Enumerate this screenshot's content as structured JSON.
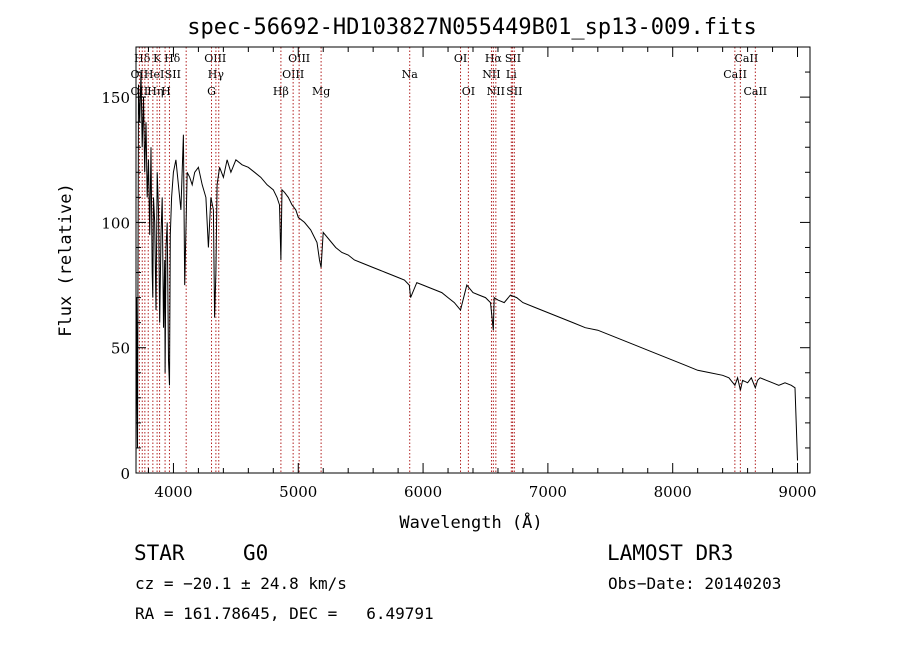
{
  "chart_data": {
    "type": "line",
    "title": "spec-56692-HD103827N055449B01_sp13-009.fits",
    "xlabel": "Wavelength (Å)",
    "ylabel": "Flux (relative)",
    "xlim": [
      3700,
      9100
    ],
    "ylim": [
      0,
      170
    ],
    "x_ticks": [
      4000,
      5000,
      6000,
      7000,
      8000,
      9000
    ],
    "y_ticks": [
      0,
      50,
      100,
      150
    ],
    "grid": false,
    "series": [
      {
        "name": "flux",
        "x": [
          3700,
          3705,
          3712,
          3720,
          3730,
          3740,
          3750,
          3760,
          3770,
          3780,
          3790,
          3800,
          3810,
          3820,
          3830,
          3835,
          3840,
          3850,
          3860,
          3870,
          3880,
          3890,
          3900,
          3910,
          3920,
          3930,
          3933,
          3940,
          3950,
          3960,
          3968,
          3975,
          3985,
          4000,
          4020,
          4040,
          4060,
          4080,
          4090,
          4101,
          4110,
          4130,
          4150,
          4170,
          4200,
          4230,
          4260,
          4280,
          4300,
          4320,
          4330,
          4340,
          4350,
          4370,
          4400,
          4430,
          4460,
          4500,
          4550,
          4600,
          4650,
          4700,
          4750,
          4800,
          4830,
          4850,
          4861,
          4870,
          4890,
          4920,
          4950,
          4980,
          5000,
          5050,
          5100,
          5150,
          5170,
          5183,
          5200,
          5250,
          5300,
          5350,
          5400,
          5450,
          5500,
          5550,
          5600,
          5650,
          5700,
          5750,
          5800,
          5850,
          5890,
          5900,
          5950,
          6000,
          6050,
          6100,
          6150,
          6200,
          6250,
          6300,
          6350,
          6400,
          6450,
          6500,
          6540,
          6563,
          6570,
          6600,
          6650,
          6700,
          6750,
          6800,
          6900,
          7000,
          7100,
          7200,
          7300,
          7400,
          7500,
          7600,
          7700,
          7800,
          7900,
          8000,
          8100,
          8200,
          8300,
          8400,
          8450,
          8498,
          8520,
          8542,
          8560,
          8600,
          8630,
          8662,
          8680,
          8700,
          8750,
          8800,
          8850,
          8900,
          8950,
          8980,
          9000
        ],
        "values": [
          2,
          70,
          10,
          155,
          140,
          160,
          130,
          150,
          120,
          140,
          110,
          125,
          95,
          130,
          80,
          70,
          110,
          100,
          65,
          120,
          105,
          60,
          95,
          110,
          58,
          85,
          40,
          90,
          100,
          45,
          35,
          95,
          110,
          120,
          125,
          115,
          105,
          135,
          75,
          100,
          120,
          118,
          115,
          120,
          122,
          115,
          110,
          90,
          110,
          105,
          62,
          80,
          115,
          122,
          118,
          125,
          120,
          125,
          123,
          122,
          120,
          118,
          115,
          113,
          110,
          107,
          85,
          113,
          112,
          110,
          107,
          105,
          102,
          100,
          97,
          92,
          85,
          82,
          96,
          93,
          90,
          88,
          87,
          85,
          84,
          83,
          82,
          81,
          80,
          79,
          78,
          77,
          75,
          70,
          76,
          75,
          74,
          73,
          72,
          70,
          68,
          65,
          75,
          72,
          71,
          70,
          68,
          57,
          70,
          69,
          68,
          71,
          70,
          68,
          66,
          64,
          62,
          60,
          58,
          57,
          55,
          53,
          51,
          49,
          47,
          45,
          43,
          41,
          40,
          39,
          38,
          35,
          38,
          33,
          37,
          36,
          38,
          34,
          37,
          38,
          37,
          36,
          35,
          36,
          35,
          34,
          5
        ]
      }
    ],
    "lines_top": [
      {
        "label": "Hδ",
        "x": 3750,
        "row": 1
      },
      {
        "label": "K",
        "x": 3870,
        "row": 1
      },
      {
        "label": "Hδ",
        "x": 3990,
        "row": 1
      },
      {
        "label": "OIII",
        "x": 4335,
        "row": 1
      },
      {
        "label": "OIII",
        "x": 5007,
        "row": 1
      },
      {
        "label": "OI",
        "x": 6300,
        "row": 1
      },
      {
        "label": "Hα",
        "x": 6563,
        "row": 1
      },
      {
        "label": "SII",
        "x": 6720,
        "row": 1
      },
      {
        "label": "CaII",
        "x": 8590,
        "row": 1
      },
      {
        "label": "OI",
        "x": 3710,
        "row": 2
      },
      {
        "label": "HeI",
        "x": 3845,
        "row": 2
      },
      {
        "label": "SII",
        "x": 3995,
        "row": 2
      },
      {
        "label": "Hγ",
        "x": 4340,
        "row": 2
      },
      {
        "label": "OIII",
        "x": 4959,
        "row": 2
      },
      {
        "label": "Na",
        "x": 5893,
        "row": 2
      },
      {
        "label": "NII",
        "x": 6548,
        "row": 2
      },
      {
        "label": "Li",
        "x": 6707,
        "row": 2
      },
      {
        "label": "CaII",
        "x": 8500,
        "row": 2
      },
      {
        "label": "OII",
        "x": 3727,
        "row": 3
      },
      {
        "label": "Hη",
        "x": 3855,
        "row": 3
      },
      {
        "label": "H",
        "x": 3940,
        "row": 3
      },
      {
        "label": "G",
        "x": 4305,
        "row": 3
      },
      {
        "label": "Hβ",
        "x": 4861,
        "row": 3
      },
      {
        "label": "Mg",
        "x": 5183,
        "row": 3
      },
      {
        "label": "OI",
        "x": 6363,
        "row": 3
      },
      {
        "label": "NII",
        "x": 6583,
        "row": 3
      },
      {
        "label": "SII",
        "x": 6731,
        "row": 3
      },
      {
        "label": "CaII",
        "x": 8662,
        "row": 3
      }
    ],
    "line_markers": [
      3727,
      3750,
      3771,
      3798,
      3835,
      3869,
      3889,
      3933,
      3968,
      4102,
      4305,
      4340,
      4363,
      4861,
      4959,
      5007,
      5183,
      5893,
      6300,
      6363,
      6548,
      6563,
      6583,
      6707,
      6717,
      6731,
      8498,
      8542,
      8662
    ]
  },
  "info": {
    "object_class": "STAR",
    "subclass": "G0",
    "survey": "LAMOST DR3",
    "redshift_line": "cz = −20.1 ± 24.8 km/s",
    "obs_date_line": "Obs−Date: 20140203",
    "coords_line": "RA = 161.78645, DEC =   6.49791"
  }
}
